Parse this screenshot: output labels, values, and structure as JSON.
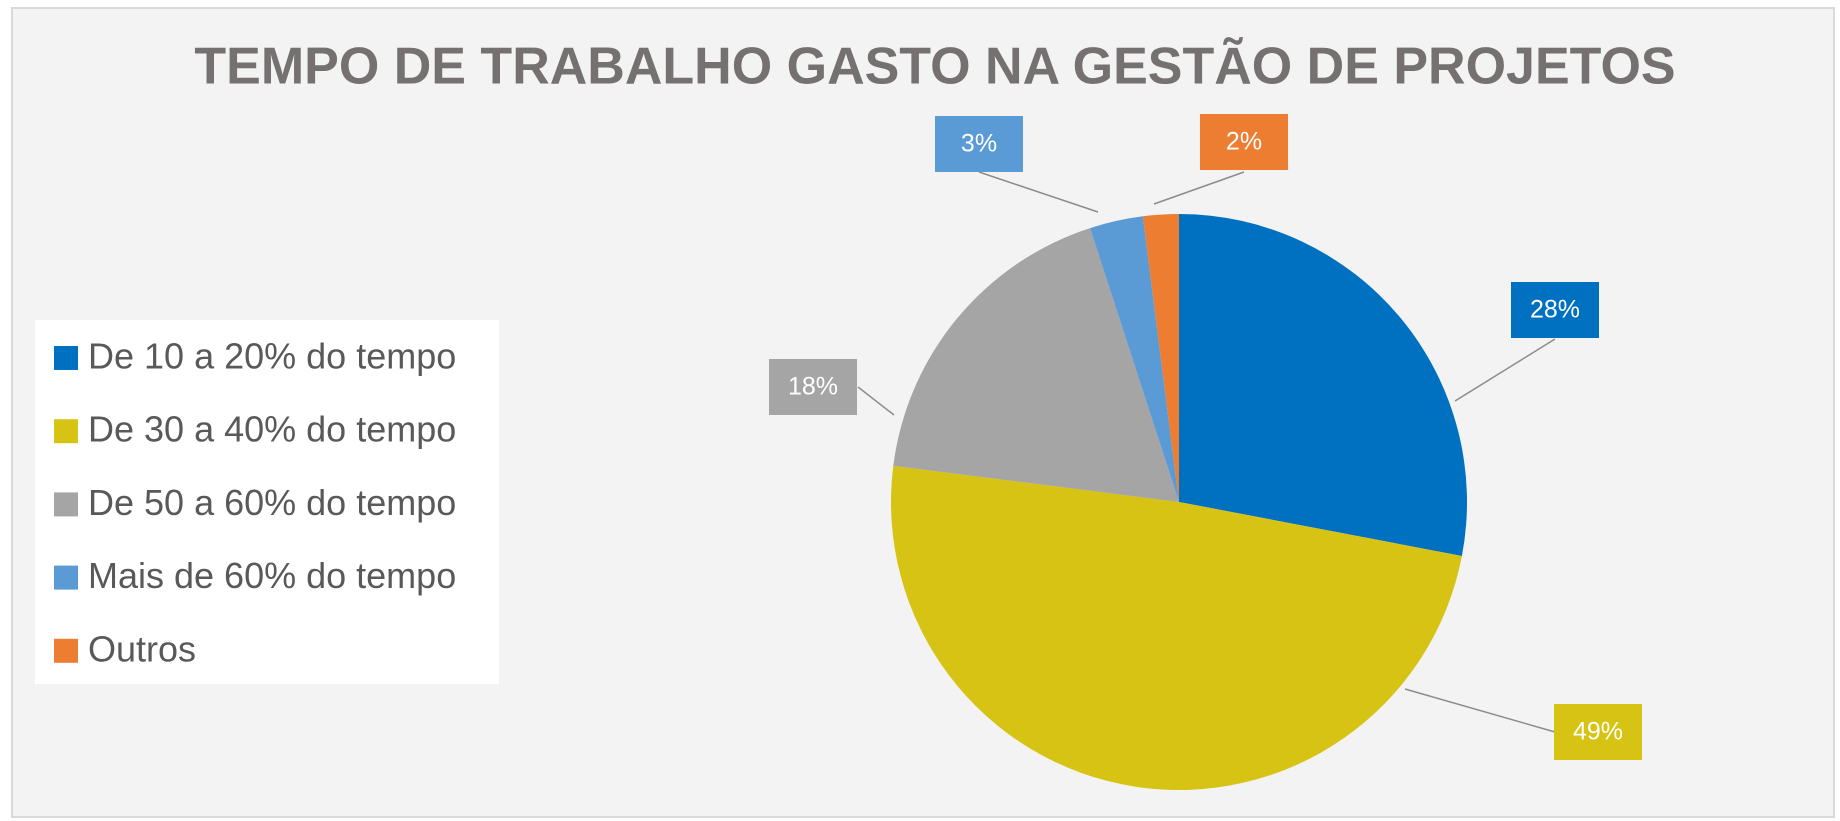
{
  "chart_data": {
    "type": "pie",
    "title": "TEMPO DE TRABALHO GASTO NA GESTÃO DE PROJETOS",
    "categories": [
      "De 10 a 20% do tempo",
      "De 30 a 40% do tempo",
      "De 50 a 60% do tempo",
      "Mais de 60% do tempo",
      "Outros"
    ],
    "values": [
      28,
      49,
      18,
      3,
      2
    ],
    "value_labels": [
      "28%",
      "49%",
      "18%",
      "3%",
      "2%"
    ],
    "colors": [
      "#0070c0",
      "#d6c313",
      "#a5a5a5",
      "#5b9bd5",
      "#ed7d31"
    ],
    "legend": "left"
  }
}
